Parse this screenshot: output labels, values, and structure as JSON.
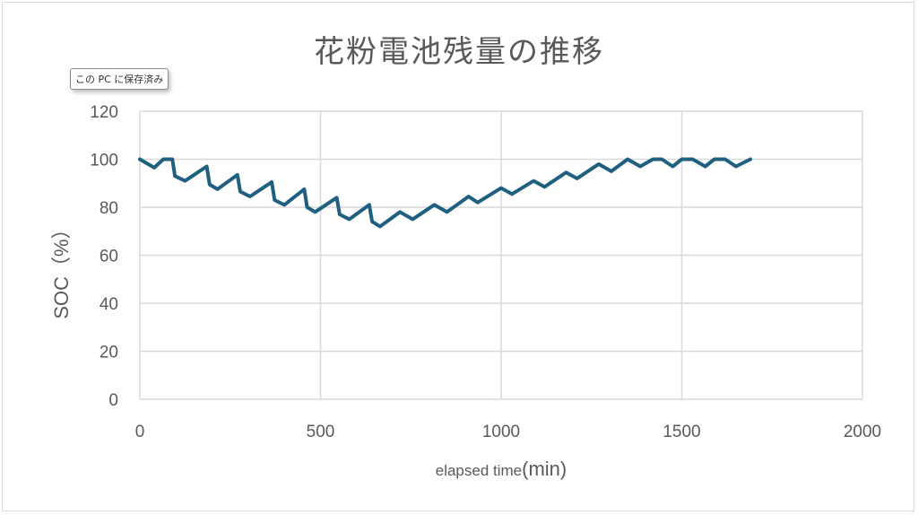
{
  "tooltip": {
    "text": "この PC に保存済み"
  },
  "chart_data": {
    "type": "line",
    "title": "花粉電池残量の推移",
    "xlabel_main": "elapsed time",
    "xlabel_unit": "(min)",
    "ylabel": "SOC（%）",
    "xlim": [
      0,
      2000
    ],
    "ylim": [
      0,
      120
    ],
    "xticks": [
      0,
      500,
      1000,
      1500,
      2000
    ],
    "yticks": [
      0,
      20,
      40,
      60,
      80,
      100,
      120
    ],
    "grid": true,
    "legend": "none",
    "line_color": "#1f5f7f",
    "series": [
      {
        "x": [
          0,
          40,
          65,
          90,
          97,
          125,
          185,
          193,
          215,
          270,
          278,
          305,
          365,
          373,
          400,
          455,
          463,
          485,
          545,
          553,
          580,
          635,
          643,
          665,
          720,
          755,
          815,
          850,
          910,
          935,
          1000,
          1030,
          1090,
          1120,
          1180,
          1210,
          1270,
          1305,
          1350,
          1385,
          1420,
          1445,
          1475,
          1500,
          1530,
          1565,
          1590,
          1620,
          1650,
          1690
        ],
        "y": [
          100,
          96.5,
          100,
          100,
          93,
          91,
          97,
          89.5,
          87.5,
          93.5,
          86.5,
          84.5,
          90.5,
          83,
          81,
          87.5,
          80,
          78,
          84,
          77,
          75,
          81,
          74,
          72,
          78,
          75,
          81,
          78,
          84.5,
          82,
          88,
          85.5,
          91,
          88.5,
          94.5,
          92,
          98,
          95,
          100,
          97,
          100,
          100,
          97,
          100,
          100,
          97,
          100,
          100,
          97,
          100
        ]
      }
    ]
  }
}
